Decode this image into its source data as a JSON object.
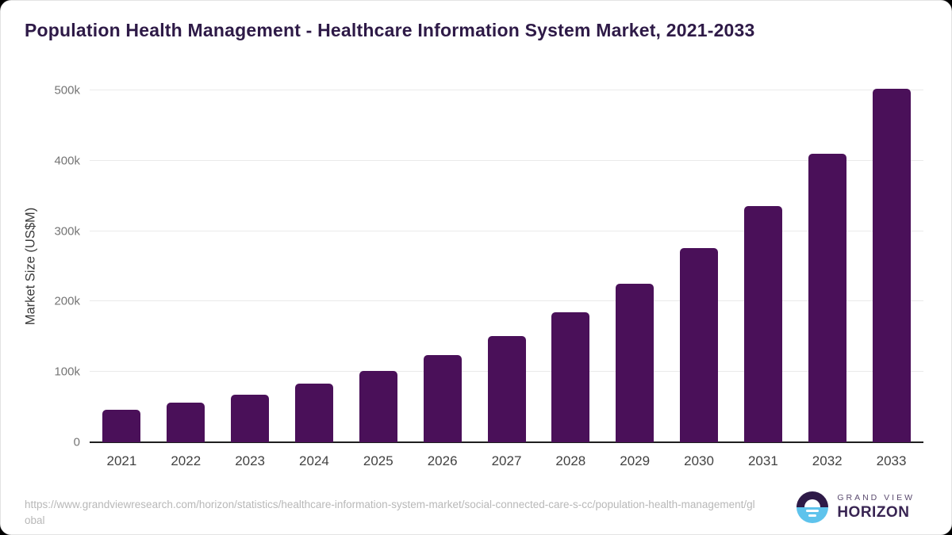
{
  "chart_data": {
    "type": "bar",
    "title": "Population Health Management - Healthcare Information System Market, 2021-2033",
    "categories": [
      "2021",
      "2022",
      "2023",
      "2024",
      "2025",
      "2026",
      "2027",
      "2028",
      "2029",
      "2030",
      "2031",
      "2032",
      "2033"
    ],
    "values": [
      46000,
      56000,
      68000,
      83000,
      101000,
      124000,
      151000,
      185000,
      225000,
      276000,
      336000,
      410000,
      502000
    ],
    "unit": "US$M",
    "xlabel": "",
    "ylabel": "Market Size (US$M)",
    "ylim": [
      0,
      500000
    ],
    "yticks": [
      {
        "value": 0,
        "label": "0"
      },
      {
        "value": 100000,
        "label": "100k"
      },
      {
        "value": 200000,
        "label": "200k"
      },
      {
        "value": 300000,
        "label": "300k"
      },
      {
        "value": 400000,
        "label": "400k"
      },
      {
        "value": 500000,
        "label": "500k"
      }
    ],
    "grid": "horizontal",
    "legend": "none",
    "bar_color": "#4A1059"
  },
  "footer": {
    "source_url": "https://www.grandviewresearch.com/horizon/statistics/healthcare-information-system-market/social-connected-care-s-cc/population-health-management/global",
    "logo": {
      "line1": "GRAND VIEW",
      "line2": "HORIZON"
    }
  },
  "colors": {
    "bar": "#4A1059",
    "title_text": "#2E1A47",
    "gridline": "#EAEAEA",
    "axis_line": "#1F1F1F",
    "y_tick_label": "#757575",
    "x_tick_label": "#424242",
    "y_axis_title": "#3A3A3A",
    "source_url_text": "#B8B8B8",
    "logo_dark": "#2E1A47",
    "logo_blue": "#5EC3EC"
  }
}
